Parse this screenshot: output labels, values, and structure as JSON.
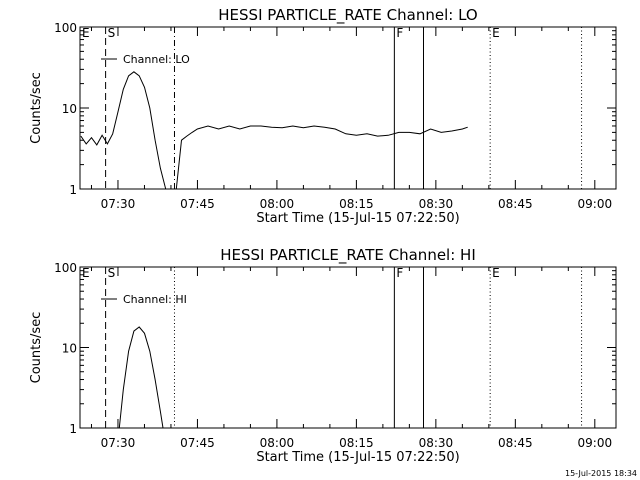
{
  "footer_timestamp": "15-Jul-2015 18:34",
  "chart_data": [
    {
      "type": "line",
      "title": "HESSI PARTICLE_RATE Channel: LO",
      "xlabel": "Start Time (15-Jul-15 07:22:50)",
      "ylabel": "Counts/sec",
      "y_scale": "log",
      "ylim": [
        1,
        100
      ],
      "y_ticks": [
        {
          "v": 1,
          "label": "1"
        },
        {
          "v": 10,
          "label": "10"
        },
        {
          "v": 100,
          "label": "100"
        }
      ],
      "xlim": [
        "07:22:50",
        "09:04:00"
      ],
      "x_ticks": [
        "07:30",
        "07:45",
        "08:00",
        "08:15",
        "08:30",
        "08:45",
        "09:00"
      ],
      "legend": {
        "label": "Channel: LO",
        "position": "top-left"
      },
      "markers": [
        {
          "label": "E",
          "time": "07:22:50",
          "style": "dotted"
        },
        {
          "label": "S",
          "time": "07:27:40",
          "style": "dashed"
        },
        {
          "label": "",
          "time": "07:40:40",
          "style": "dashdot"
        },
        {
          "label": "F",
          "time": "08:22:10",
          "style": "solid"
        },
        {
          "label": "",
          "time": "08:27:40",
          "style": "solid"
        },
        {
          "label": "E",
          "time": "08:40:15",
          "style": "dotted"
        },
        {
          "label": "",
          "time": "08:57:30",
          "style": "dotted"
        }
      ],
      "series": [
        {
          "time": [
            "07:23",
            "07:24",
            "07:25",
            "07:26",
            "07:27",
            "07:28",
            "07:29",
            "07:30",
            "07:31",
            "07:32",
            "07:33",
            "07:34",
            "07:35",
            "07:36",
            "07:37",
            "07:38",
            "07:39",
            "07:40",
            "07:41",
            "07:42",
            "07:43",
            "07:44",
            "07:45",
            "07:47",
            "07:49",
            "07:51",
            "07:53",
            "07:55",
            "07:57",
            "07:59",
            "08:01",
            "08:03",
            "08:05",
            "08:07",
            "08:09",
            "08:11",
            "08:13",
            "08:15",
            "08:17",
            "08:19",
            "08:21",
            "08:23",
            "08:25",
            "08:27",
            "08:29",
            "08:31",
            "08:33",
            "08:35",
            "08:36"
          ],
          "values": [
            4.5,
            3.6,
            4.3,
            3.5,
            4.6,
            3.6,
            4.8,
            9,
            17,
            25,
            28,
            25,
            18,
            10,
            4,
            1.8,
            1,
            1,
            1,
            4,
            4.5,
            5,
            5.5,
            6,
            5.5,
            6,
            5.5,
            6,
            6,
            5.8,
            5.7,
            6,
            5.7,
            6,
            5.8,
            5.5,
            4.8,
            4.6,
            4.8,
            4.5,
            4.6,
            5,
            5,
            4.8,
            5.5,
            5,
            5.2,
            5.5,
            5.8
          ]
        }
      ]
    },
    {
      "type": "line",
      "title": "HESSI PARTICLE_RATE Channel: HI",
      "xlabel": "Start Time (15-Jul-15 07:22:50)",
      "ylabel": "Counts/sec",
      "y_scale": "log",
      "ylim": [
        1,
        100
      ],
      "y_ticks": [
        {
          "v": 1,
          "label": "1"
        },
        {
          "v": 10,
          "label": "10"
        },
        {
          "v": 100,
          "label": "100"
        }
      ],
      "xlim": [
        "07:22:50",
        "09:04:00"
      ],
      "x_ticks": [
        "07:30",
        "07:45",
        "08:00",
        "08:15",
        "08:30",
        "08:45",
        "09:00"
      ],
      "legend": {
        "label": "Channel: HI",
        "position": "top-left"
      },
      "markers": [
        {
          "label": "E",
          "time": "07:22:50",
          "style": "dotted"
        },
        {
          "label": "S",
          "time": "07:27:40",
          "style": "dashed"
        },
        {
          "label": "",
          "time": "07:40:40",
          "style": "dotted"
        },
        {
          "label": "F",
          "time": "08:22:10",
          "style": "solid"
        },
        {
          "label": "",
          "time": "08:27:40",
          "style": "solid"
        },
        {
          "label": "E",
          "time": "08:40:15",
          "style": "dotted"
        },
        {
          "label": "",
          "time": "08:57:30",
          "style": "dotted"
        }
      ],
      "series": [
        {
          "time": [
            "07:30:15",
            "07:31",
            "07:32",
            "07:33",
            "07:34",
            "07:35",
            "07:36",
            "07:37",
            "07:38",
            "07:38:30"
          ],
          "values": [
            1,
            3,
            9,
            16,
            18,
            15,
            9,
            4,
            1.6,
            1
          ]
        }
      ]
    }
  ]
}
